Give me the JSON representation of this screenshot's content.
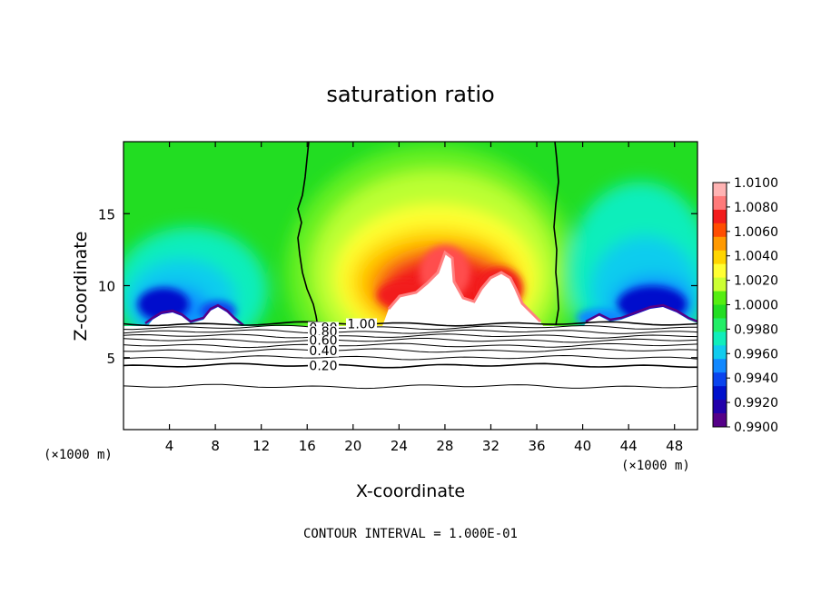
{
  "chart_data": {
    "type": "heatmap",
    "title": "saturation ratio",
    "xlabel": "X-coordinate",
    "ylabel": "Z-coordinate",
    "x_unit_left": "(×1000 m)",
    "x_unit_right": "(×1000 m)",
    "footer": "CONTOUR INTERVAL = 1.000E-01",
    "xlim": [
      0,
      50
    ],
    "ylim": [
      0,
      20
    ],
    "x_ticks": [
      4,
      8,
      12,
      16,
      20,
      24,
      28,
      32,
      36,
      40,
      44,
      48
    ],
    "y_ticks": [
      5,
      10,
      15
    ],
    "colorbar": {
      "levels": [
        "1.0100",
        "1.0080",
        "1.0060",
        "1.0040",
        "1.0020",
        "1.0000",
        "0.9980",
        "0.9960",
        "0.9940",
        "0.9920",
        "0.9900"
      ],
      "colors": [
        "#ffb3b3",
        "#ff7a7a",
        "#f21c1c",
        "#ff4d00",
        "#ff9900",
        "#ffd500",
        "#ffff33",
        "#ccff33",
        "#55ee11",
        "#22dd22",
        "#22ee66",
        "#11eebb",
        "#11ccee",
        "#1188ff",
        "#0a44ee",
        "#0011cc",
        "#2200aa",
        "#550088"
      ]
    },
    "cloud_base_z": 7.4,
    "contours": [
      {
        "level": 1.0,
        "label": "1.00",
        "z": 7.35
      },
      {
        "level": 0.9,
        "label": "0.90",
        "z": 7.1
      },
      {
        "level": 0.8,
        "label": "0.80",
        "z": 6.8
      },
      {
        "level": 0.7,
        "label": "",
        "z": 6.5
      },
      {
        "level": 0.6,
        "label": "0.60",
        "z": 6.2
      },
      {
        "level": 0.5,
        "label": "",
        "z": 5.85
      },
      {
        "level": 0.4,
        "label": "0.40",
        "z": 5.5
      },
      {
        "level": 0.3,
        "label": "",
        "z": 5.0
      },
      {
        "level": 0.2,
        "label": "0.20",
        "z": 4.45
      },
      {
        "level": 0.1,
        "label": "",
        "z": 3.0
      }
    ],
    "saturation_boundary_x": [
      16.0,
      37.8
    ]
  }
}
